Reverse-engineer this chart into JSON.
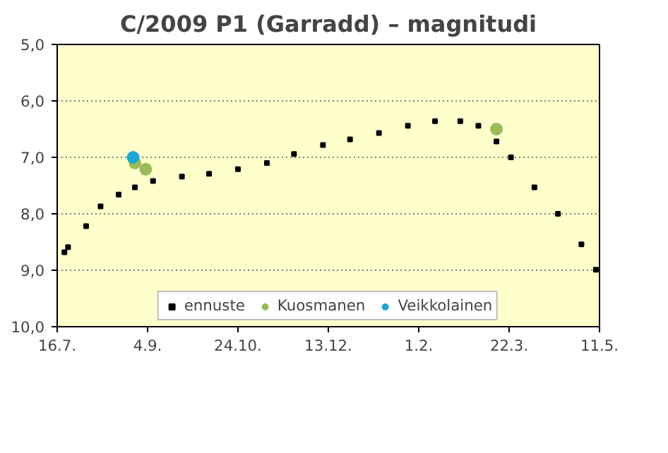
{
  "chart_data": {
    "type": "scatter",
    "title": "C/2009 P1 (Garradd) – magnitudi",
    "xlim": [
      "2011-07-16",
      "2012-05-11"
    ],
    "xticks": [
      {
        "value": "2011-07-16",
        "label": "16.7."
      },
      {
        "value": "2011-09-04",
        "label": "4.9."
      },
      {
        "value": "2011-10-24",
        "label": "24.10."
      },
      {
        "value": "2011-12-13",
        "label": "13.12."
      },
      {
        "value": "2012-02-01",
        "label": "1.2."
      },
      {
        "value": "2012-03-22",
        "label": "22.3."
      },
      {
        "value": "2012-05-11",
        "label": "11.5."
      }
    ],
    "ylim": [
      10,
      5
    ],
    "yticks": [
      {
        "value": 5,
        "label": "5,0"
      },
      {
        "value": 6,
        "label": "6,0"
      },
      {
        "value": 7,
        "label": "7,0"
      },
      {
        "value": 8,
        "label": "8,0"
      },
      {
        "value": 9,
        "label": "9,0"
      },
      {
        "value": 10,
        "label": "10,0"
      }
    ],
    "grid": "y",
    "legend": "bottom",
    "series": [
      {
        "name": "ennuste",
        "color": "#000000",
        "marker": "square",
        "x": [
          "2011-07-20",
          "2011-07-22",
          "2011-08-01",
          "2011-08-09",
          "2011-08-19",
          "2011-08-28",
          "2011-09-07",
          "2011-09-23",
          "2011-10-08",
          "2011-10-24",
          "2011-11-09",
          "2011-11-24",
          "2011-12-10",
          "2011-12-25",
          "2012-01-10",
          "2012-01-26",
          "2012-02-10",
          "2012-02-24",
          "2012-03-05",
          "2012-03-15",
          "2012-03-23",
          "2012-04-05",
          "2012-04-18",
          "2012-05-01",
          "2012-05-09"
        ],
        "values": [
          8.68,
          8.59,
          8.22,
          7.87,
          7.66,
          7.53,
          7.42,
          7.34,
          7.29,
          7.21,
          7.1,
          6.94,
          6.78,
          6.68,
          6.57,
          6.44,
          6.36,
          6.36,
          6.44,
          6.72,
          7.0,
          7.53,
          8.0,
          8.54,
          8.99
        ]
      },
      {
        "name": "Kuosmanen",
        "color": "#9bbb59",
        "marker": "circle",
        "x": [
          "2011-08-28",
          "2011-09-03",
          "2012-03-15"
        ],
        "values": [
          7.1,
          7.21,
          6.5
        ]
      },
      {
        "name": "Veikkolainen",
        "color": "#1ba6d8",
        "marker": "circle",
        "x": [
          "2011-08-27"
        ],
        "values": [
          7.0
        ]
      }
    ]
  }
}
